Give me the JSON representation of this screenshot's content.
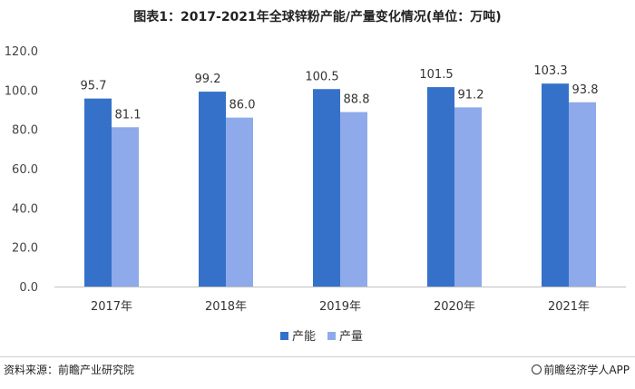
{
  "chart_data": {
    "type": "bar",
    "title": "图表1：2017-2021年全球锌粉产能/产量变化情况(单位：万吨)",
    "categories": [
      "2017年",
      "2018年",
      "2019年",
      "2020年",
      "2021年"
    ],
    "series": [
      {
        "name": "产能",
        "values": [
          95.7,
          99.2,
          100.5,
          101.5,
          103.3
        ],
        "labels": [
          "95.7",
          "99.2",
          "100.5",
          "101.5",
          "103.3"
        ],
        "color": "#3571C9"
      },
      {
        "name": "产量",
        "values": [
          81.1,
          86.0,
          88.8,
          91.2,
          93.8
        ],
        "labels": [
          "81.1",
          "86.0",
          "88.8",
          "91.2",
          "93.8"
        ],
        "color": "#8FAAEA"
      }
    ],
    "ylim": [
      0,
      120
    ],
    "yticks": [
      "0.0",
      "20.0",
      "40.0",
      "60.0",
      "80.0",
      "100.0",
      "120.0"
    ],
    "grid": false,
    "legend_position": "bottom"
  },
  "footer": {
    "source": "资料来源：前瞻产业研究院",
    "app": "前瞻经济学人APP"
  }
}
